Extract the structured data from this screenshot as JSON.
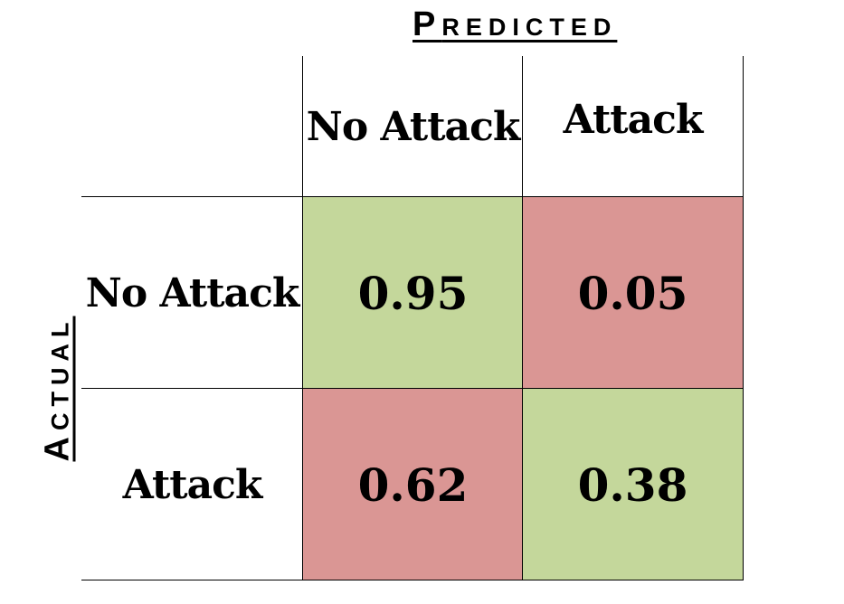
{
  "chart_data": {
    "type": "heatmap",
    "xlabel_cap": "P",
    "xlabel_rest": "REDICTED",
    "ylabel_cap": "A",
    "ylabel_rest": "CTUAL",
    "x_categories": [
      "No Attack",
      "Attack"
    ],
    "y_categories": [
      "No Attack",
      "Attack"
    ],
    "values": [
      [
        0.95,
        0.05
      ],
      [
        0.62,
        0.38
      ]
    ],
    "value_labels": [
      [
        "0.95",
        "0.05"
      ],
      [
        "0.62",
        "0.38"
      ]
    ],
    "colors": {
      "correct": "#c4d79b",
      "incorrect": "#da9694"
    }
  }
}
